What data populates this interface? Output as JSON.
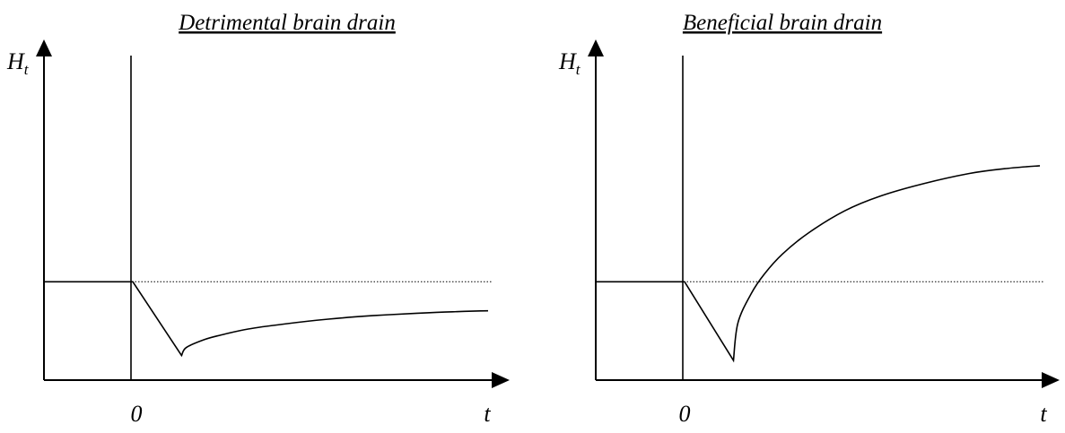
{
  "chart_data": [
    {
      "type": "line",
      "title": "Detrimental brain drain",
      "ylabel": "H",
      "ylabel_subscript": "t",
      "xlabel": "t",
      "origin_label": "0",
      "xlim": [
        -1,
        4
      ],
      "ylim": [
        0,
        3.3
      ],
      "baseline": 1,
      "series": [
        {
          "x": [
            -1,
            0,
            0.55,
            0.6,
            0.8,
            1.0,
            1.3,
            1.7,
            2.2,
            2.7,
            3.2,
            3.6,
            4.0
          ],
          "y": [
            1,
            1,
            0.25,
            0.33,
            0.41,
            0.46,
            0.52,
            0.57,
            0.62,
            0.655,
            0.68,
            0.695,
            0.705
          ]
        }
      ]
    },
    {
      "type": "line",
      "title": "Beneficial brain drain",
      "ylabel": "H",
      "ylabel_subscript": "t",
      "xlabel": "t",
      "origin_label": "0",
      "xlim": [
        -1,
        4
      ],
      "ylim": [
        0,
        3.3
      ],
      "baseline": 1,
      "series": [
        {
          "x": [
            -1,
            0,
            0.55,
            0.6,
            0.75,
            0.9,
            1.1,
            1.4,
            1.8,
            2.2,
            2.7,
            3.2,
            3.6,
            4.0
          ],
          "y": [
            1,
            1,
            0.2,
            0.58,
            0.88,
            1.08,
            1.28,
            1.5,
            1.72,
            1.87,
            2.0,
            2.1,
            2.15,
            2.18
          ]
        }
      ]
    }
  ]
}
